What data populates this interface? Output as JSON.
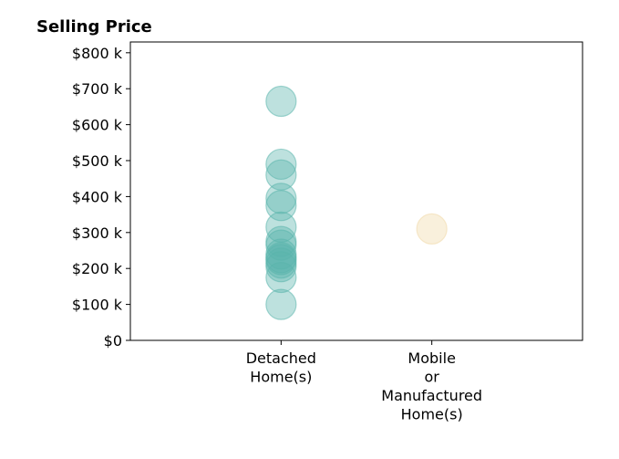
{
  "chart_data": {
    "type": "scatter",
    "title": "Selling Price",
    "xlabel": "",
    "ylabel": "",
    "categories": [
      "Detached\nHome(s)",
      "Mobile\nor\nManufactured\nHome(s)"
    ],
    "ylim": [
      0,
      830000
    ],
    "xlim": [
      -1,
      2
    ],
    "yticks": [
      0,
      100000,
      200000,
      300000,
      400000,
      500000,
      600000,
      700000,
      800000
    ],
    "ytick_labels": [
      "$0",
      "$100 k",
      "$200 k",
      "$300 k",
      "$400 k",
      "$500 k",
      "$600 k",
      "$700 k",
      "$800 k"
    ],
    "grid": false,
    "legend": "none",
    "series": [
      {
        "category": 0,
        "color": "#5ab4ac",
        "values": [
          665000,
          490000,
          460000,
          395000,
          375000,
          315000,
          275000,
          265000,
          240000,
          230000,
          225000,
          215000,
          205000,
          175000,
          100000
        ]
      },
      {
        "category": 1,
        "color": "#f0d9a8",
        "values": [
          310000
        ]
      }
    ]
  }
}
